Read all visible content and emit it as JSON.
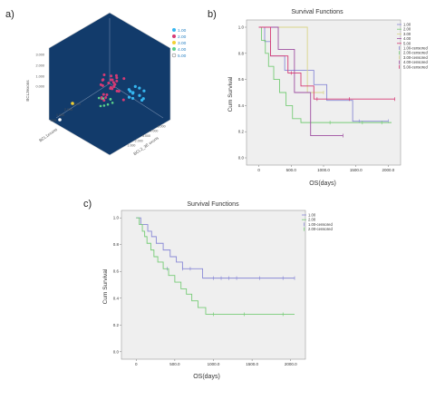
{
  "panels": [
    {
      "label": "a)"
    },
    {
      "label": "b)"
    },
    {
      "label": "c)"
    }
  ],
  "chart_data": [
    {
      "type": "scatter",
      "panel": "a",
      "axis_labels": {
        "vertical": "BCL3exons",
        "left": "BCL1exons",
        "right": "BCL2_3E exons"
      },
      "ticks": {
        "vertical": [
          "3.000",
          "2.000",
          "1.000",
          "0.000"
        ],
        "left": [
          "3.000",
          "2.000",
          "1.000",
          ".000"
        ],
        "right": [
          "1.000",
          "2.000",
          "3.000",
          "4.000",
          "5.000"
        ]
      },
      "legend": [
        "1.00",
        "2.00",
        "3.00",
        "4.00",
        "5.00"
      ],
      "legend_position": "right",
      "colors": {
        "background": "#123b6b",
        "1": "#35b6f0",
        "2": "#d63a74",
        "3": "#f2d033",
        "4": "#5bd08a",
        "5": "#ffffff"
      }
    },
    {
      "type": "line",
      "panel": "b",
      "title": "Survival Functions",
      "xlabel": "OS(days)",
      "ylabel": "Cum Survival",
      "xlim": [
        0,
        2000
      ],
      "ylim": [
        0,
        1
      ],
      "x_ticks": [
        "0",
        "500.0",
        "1000.0",
        "1500.0",
        "2000.0"
      ],
      "y_ticks": [
        "0.0",
        "0.2",
        "0.4",
        "0.6",
        "0.8",
        "1.0"
      ],
      "legend_position": "top-right",
      "legend": [
        "1.00",
        "2.00",
        "3.00",
        "4.00",
        "5.00",
        "1.00-censored",
        "2.00-censored",
        "3.00-censored",
        "4.00-censored",
        "5.00-censored"
      ],
      "series": [
        {
          "name": "1.00",
          "color": "#8a8ad6",
          "steps": [
            [
              0,
              1.0
            ],
            [
              90,
              0.89
            ],
            [
              180,
              0.78
            ],
            [
              400,
              0.67
            ],
            [
              850,
              0.56
            ],
            [
              1050,
              0.44
            ],
            [
              1450,
              0.28
            ]
          ],
          "censored": [
            [
              1550,
              0.28
            ],
            [
              2000,
              0.28
            ]
          ],
          "end": 2000
        },
        {
          "name": "2.00",
          "color": "#77cc77",
          "steps": [
            [
              0,
              1.0
            ],
            [
              40,
              0.9
            ],
            [
              100,
              0.8
            ],
            [
              150,
              0.7
            ],
            [
              230,
              0.6
            ],
            [
              320,
              0.5
            ],
            [
              420,
              0.4
            ],
            [
              520,
              0.3
            ],
            [
              650,
              0.27
            ]
          ],
          "censored": [
            [
              1100,
              0.27
            ],
            [
              1600,
              0.27
            ],
            [
              1900,
              0.27
            ]
          ],
          "end": 2050
        },
        {
          "name": "3.00",
          "color": "#d9d48a",
          "steps": [
            [
              0,
              1.0
            ],
            [
              750,
              0.5
            ]
          ],
          "censored": [
            [
              1000,
              0.5
            ]
          ],
          "end": 1000
        },
        {
          "name": "4.00",
          "color": "#9e4fa1",
          "steps": [
            [
              0,
              1.0
            ],
            [
              300,
              0.83
            ],
            [
              550,
              0.5
            ],
            [
              800,
              0.17
            ]
          ],
          "censored": [
            [
              1300,
              0.17
            ]
          ],
          "end": 1300
        },
        {
          "name": "5.00",
          "color": "#d63a74",
          "steps": [
            [
              0,
              1.0
            ],
            [
              180,
              0.78
            ],
            [
              450,
              0.65
            ],
            [
              650,
              0.55
            ],
            [
              850,
              0.45
            ]
          ],
          "censored": [
            [
              500,
              0.65
            ],
            [
              900,
              0.45
            ],
            [
              1400,
              0.45
            ],
            [
              2100,
              0.45
            ]
          ],
          "end": 2100
        }
      ]
    },
    {
      "type": "line",
      "panel": "c",
      "title": "Survival Functions",
      "xlabel": "OS(days)",
      "ylabel": "Cum Survival",
      "xlim": [
        0,
        2000
      ],
      "ylim": [
        0,
        1
      ],
      "x_ticks": [
        "0",
        "500.0",
        "1000.0",
        "1500.0",
        "2000.0"
      ],
      "y_ticks": [
        "0.0",
        "0.2",
        "0.4",
        "0.6",
        "0.8",
        "1.0"
      ],
      "legend_position": "top-right",
      "legend": [
        "1.00",
        "2.00",
        "1.00-censored",
        "2.00-censored"
      ],
      "series": [
        {
          "name": "1.00",
          "color": "#8a8ad6",
          "steps": [
            [
              0,
              1.0
            ],
            [
              60,
              0.95
            ],
            [
              150,
              0.9
            ],
            [
              200,
              0.86
            ],
            [
              260,
              0.81
            ],
            [
              350,
              0.76
            ],
            [
              440,
              0.71
            ],
            [
              520,
              0.67
            ],
            [
              600,
              0.62
            ],
            [
              860,
              0.55
            ]
          ],
          "censored": [
            [
              400,
              0.62
            ],
            [
              600,
              0.62
            ],
            [
              700,
              0.62
            ],
            [
              1000,
              0.55
            ],
            [
              1100,
              0.55
            ],
            [
              1200,
              0.55
            ],
            [
              1300,
              0.55
            ],
            [
              1600,
              0.55
            ],
            [
              1900,
              0.55
            ],
            [
              2050,
              0.55
            ]
          ],
          "end": 2050
        },
        {
          "name": "2.00",
          "color": "#77cc77",
          "steps": [
            [
              0,
              1.0
            ],
            [
              40,
              0.95
            ],
            [
              80,
              0.9
            ],
            [
              110,
              0.86
            ],
            [
              140,
              0.81
            ],
            [
              190,
              0.76
            ],
            [
              230,
              0.71
            ],
            [
              280,
              0.67
            ],
            [
              350,
              0.62
            ],
            [
              420,
              0.57
            ],
            [
              500,
              0.52
            ],
            [
              580,
              0.47
            ],
            [
              650,
              0.43
            ],
            [
              720,
              0.38
            ],
            [
              800,
              0.33
            ],
            [
              900,
              0.28
            ]
          ],
          "censored": [
            [
              1000,
              0.28
            ],
            [
              1400,
              0.28
            ],
            [
              1900,
              0.28
            ]
          ],
          "end": 2050
        }
      ]
    }
  ]
}
